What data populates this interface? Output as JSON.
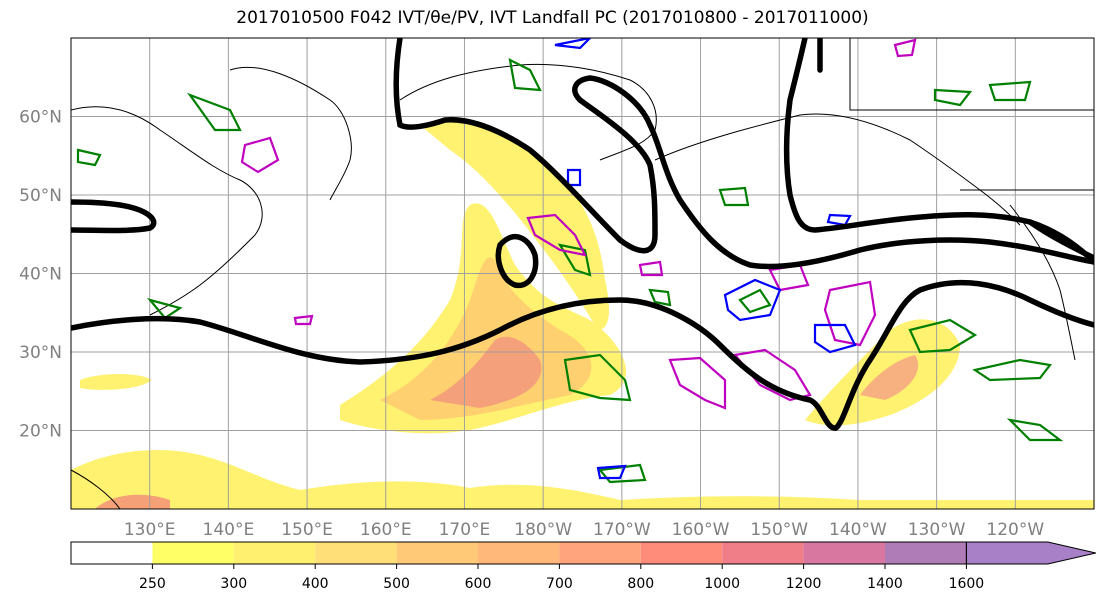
{
  "title": "2017010500 F042 IVT/θe/PV, IVT Landfall PC (2017010800 - 2017011000)",
  "map": {
    "lon_labels": [
      "130°E",
      "140°E",
      "150°E",
      "160°E",
      "170°E",
      "180°W",
      "170°W",
      "160°W",
      "150°W",
      "140°W",
      "130°W",
      "120°W"
    ],
    "lat_labels": [
      "60°N",
      "50°N",
      "40°N",
      "30°N",
      "20°N"
    ],
    "lon_range": [
      120,
      250
    ],
    "lat_range": [
      10,
      70
    ],
    "gridline_color": "#a0a0a0",
    "ivt_fill_color_low": "#fff270",
    "ivt_fill_color_high": "#f0a080",
    "contour_colors": {
      "theta_e": "#000000",
      "pv_green": "#008000",
      "pv_magenta": "#c000c0",
      "pv_blue": "#0000ff"
    }
  },
  "colorbar": {
    "tick_labels": [
      "250",
      "300",
      "400",
      "500",
      "600",
      "700",
      "800",
      "1000",
      "1200",
      "1400",
      "1600"
    ],
    "colors": [
      "#ffffff",
      "#ffff66",
      "#fff070",
      "#ffe078",
      "#ffc978",
      "#ffb87a",
      "#ffa47c",
      "#ff8c7a",
      "#ef7e88",
      "#d878a0",
      "#b07cb8",
      "#a880c8"
    ]
  }
}
